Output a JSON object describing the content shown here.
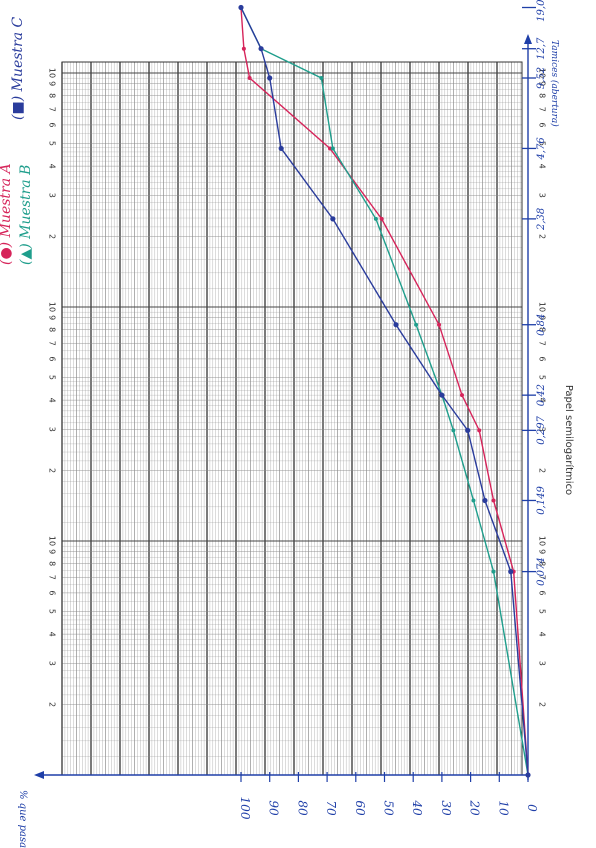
{
  "chart_data": {
    "type": "line",
    "paper_label": "Papel semilogarítmico",
    "x_scale": "log",
    "x_axis_label": "Tamices (abertura)",
    "y_axis_label": "% que pasa",
    "xlim": [
      0.01,
      30
    ],
    "ylim": [
      0,
      100
    ],
    "sieve_labels": [
      "0,074",
      "0,149",
      "0,297",
      "0,42",
      "0,84",
      "2,38",
      "4,76",
      "9,52",
      "12,7",
      "19,05"
    ],
    "log_tick_labels": [
      "2",
      "3",
      "4",
      "5",
      "6",
      "7",
      "8",
      "9",
      "10"
    ],
    "pct_ticks": [
      "0",
      "10",
      "20",
      "30",
      "40",
      "50",
      "60",
      "70",
      "80",
      "90",
      "100"
    ],
    "series": [
      {
        "name": "Muestra A",
        "color": "#d6245a",
        "x": [
          0.01,
          0.074,
          0.149,
          0.297,
          0.42,
          0.84,
          2.38,
          4.76,
          9.52,
          12.7,
          19.05
        ],
        "y": [
          0,
          5,
          12,
          17,
          23,
          31,
          51,
          69,
          97,
          99,
          100
        ]
      },
      {
        "name": "Muestra B",
        "color": "#1f9e8c",
        "x": [
          0.01,
          0.074,
          0.149,
          0.297,
          0.42,
          0.84,
          2.38,
          4.76,
          9.52,
          12.7,
          19.05
        ],
        "y": [
          0,
          12,
          19,
          26,
          30,
          39,
          53,
          68,
          72,
          93,
          100
        ]
      },
      {
        "name": "Muestra C",
        "color": "#2a3c9c",
        "x": [
          0.01,
          0.074,
          0.149,
          0.297,
          0.42,
          0.84,
          2.38,
          4.76,
          9.52,
          12.7,
          19.05
        ],
        "y": [
          0,
          6,
          15,
          21,
          30,
          46,
          68,
          86,
          90,
          93,
          100
        ]
      }
    ],
    "legend": [
      "(●) Muestra A",
      "(▲) Muestra B",
      "(■) Muestra C"
    ]
  }
}
